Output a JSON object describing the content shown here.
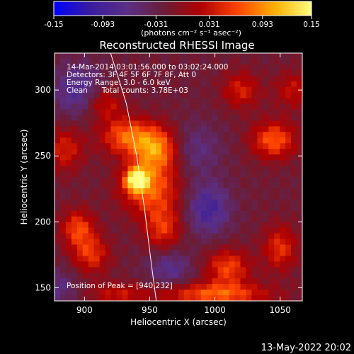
{
  "colorbar": {
    "min": -0.15,
    "max": 0.15,
    "tick_labels": [
      "-0.15",
      "-0.093",
      "-0.031",
      "0.031",
      "0.093",
      "0.15"
    ],
    "unit_label": "(photons cm⁻² s⁻¹ asec⁻²)",
    "stops": [
      "#0000ff",
      "#3b1c9e",
      "#5a2f86",
      "#6a1d36",
      "#b00000",
      "#ff4400",
      "#ffb000",
      "#ffff80"
    ]
  },
  "chart_data": {
    "type": "heatmap",
    "title": "Reconstructed RHESSI Image",
    "xlabel": "Heliocentric X (arcsec)",
    "ylabel": "Heliocentric Y (arcsec)",
    "xlim": [
      877,
      1067
    ],
    "ylim": [
      140,
      328
    ],
    "x_ticks": [
      900,
      950,
      1000,
      1050
    ],
    "y_ticks": [
      150,
      200,
      250,
      300
    ],
    "annotations": [
      "14-Mar-2014 03:01:56.000 to 03:02:24.000",
      "Detectors: 3F 4F 5F 6F 7F 8F, Att 0",
      "Energy Range: 3.0 - 6.0 keV",
      "Clean      Total counts: 3.78E+03"
    ],
    "peak_label": "Position of Peak = [940,232]",
    "peak": [
      940,
      232
    ],
    "limb_points": [
      [
        920,
        328
      ],
      [
        932,
        290
      ],
      [
        940,
        250
      ],
      [
        946,
        210
      ],
      [
        951,
        170
      ],
      [
        955,
        140
      ]
    ],
    "sources": [
      {
        "x": 940,
        "y": 232,
        "value": 0.15,
        "sx": 6,
        "sy": 6
      },
      {
        "x": 955,
        "y": 255,
        "value": 0.11,
        "sx": 12,
        "sy": 12
      },
      {
        "x": 932,
        "y": 265,
        "value": 0.09,
        "sx": 14,
        "sy": 10
      },
      {
        "x": 950,
        "y": 225,
        "value": 0.09,
        "sx": 16,
        "sy": 14
      },
      {
        "x": 960,
        "y": 195,
        "value": 0.07,
        "sx": 10,
        "sy": 12
      },
      {
        "x": 895,
        "y": 195,
        "value": 0.08,
        "sx": 9,
        "sy": 10
      },
      {
        "x": 905,
        "y": 175,
        "value": 0.07,
        "sx": 10,
        "sy": 10
      },
      {
        "x": 915,
        "y": 290,
        "value": 0.06,
        "sx": 10,
        "sy": 9
      },
      {
        "x": 885,
        "y": 255,
        "value": 0.06,
        "sx": 10,
        "sy": 12
      },
      {
        "x": 1045,
        "y": 262,
        "value": 0.09,
        "sx": 12,
        "sy": 10
      },
      {
        "x": 1020,
        "y": 300,
        "value": 0.06,
        "sx": 10,
        "sy": 10
      },
      {
        "x": 1050,
        "y": 180,
        "value": 0.07,
        "sx": 9,
        "sy": 12
      },
      {
        "x": 1010,
        "y": 165,
        "value": 0.08,
        "sx": 12,
        "sy": 10
      },
      {
        "x": 1000,
        "y": 145,
        "value": 0.09,
        "sx": 30,
        "sy": 6
      },
      {
        "x": 925,
        "y": 145,
        "value": 0.05,
        "sx": 15,
        "sy": 6
      },
      {
        "x": 1060,
        "y": 300,
        "value": 0.05,
        "sx": 10,
        "sy": 10
      },
      {
        "x": 985,
        "y": 255,
        "value": -0.04,
        "sx": 14,
        "sy": 14
      },
      {
        "x": 995,
        "y": 210,
        "value": -0.07,
        "sx": 12,
        "sy": 14
      },
      {
        "x": 895,
        "y": 300,
        "value": -0.06,
        "sx": 14,
        "sy": 14
      },
      {
        "x": 965,
        "y": 165,
        "value": -0.05,
        "sx": 12,
        "sy": 10
      },
      {
        "x": 880,
        "y": 150,
        "value": -0.04,
        "sx": 10,
        "sy": 10
      }
    ]
  },
  "footer": {
    "timestamp": "13-May-2022 20:02"
  }
}
